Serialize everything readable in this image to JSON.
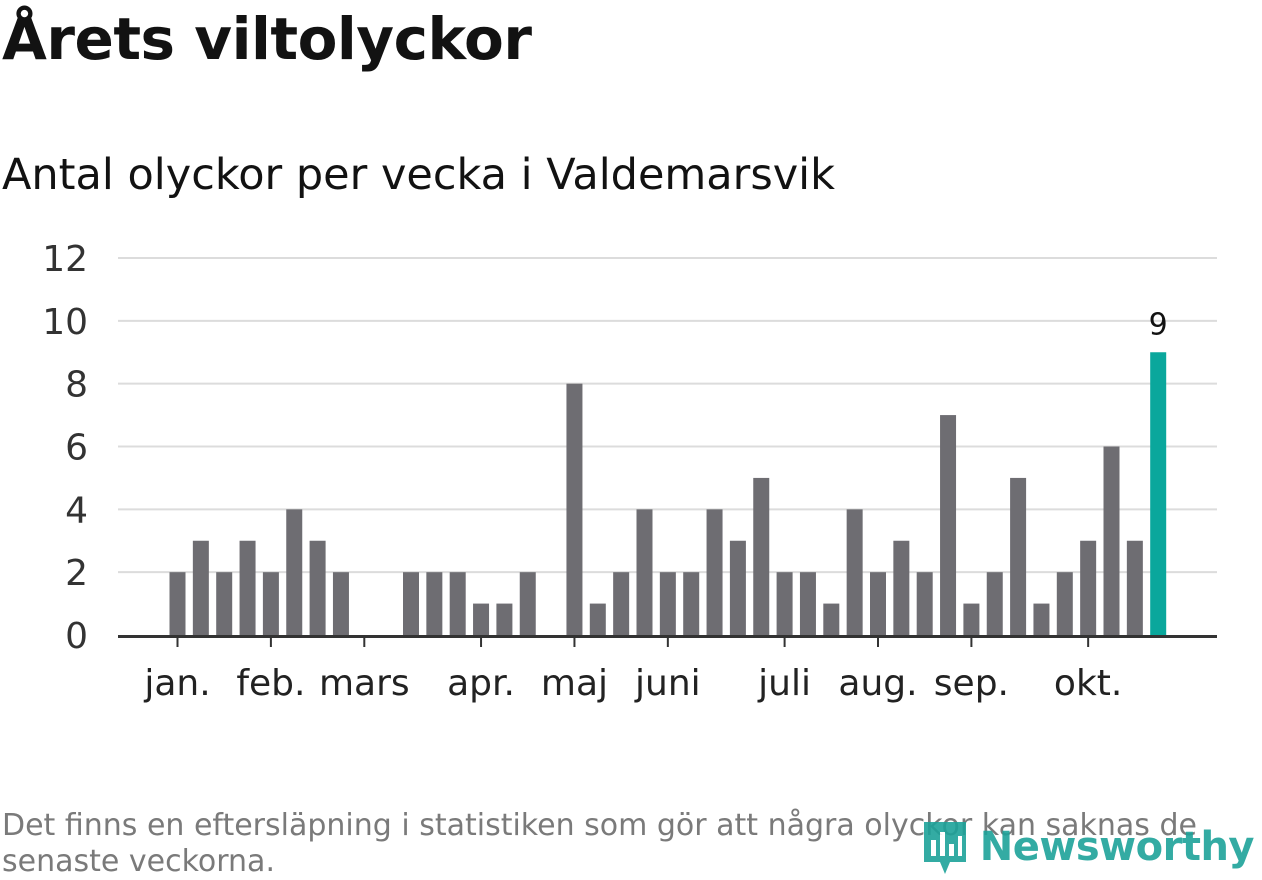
{
  "title": "Årets viltolyckor",
  "subtitle": "Antal olyckor per vecka i Valdemarsvik",
  "footnote": "Det finns en eftersläpning i statistiken som gör att några olyckor kan saknas de senaste veckorna.",
  "brand": "Newsworthy",
  "colors": {
    "bar": "#6e6d72",
    "highlight": "#0aa79c",
    "grid": "#dcdcdc",
    "axis": "#333333",
    "brand": "#1ea39a"
  },
  "chart_data": {
    "type": "bar",
    "title": "Antal olyckor per vecka i Valdemarsvik",
    "xlabel": "",
    "ylabel": "",
    "ylim": [
      0,
      12
    ],
    "yticks": [
      0,
      2,
      4,
      6,
      8,
      10,
      12
    ],
    "grid": true,
    "week_start": 2,
    "values": [
      2,
      3,
      2,
      3,
      2,
      4,
      3,
      2,
      0,
      0,
      2,
      2,
      2,
      1,
      1,
      2,
      0,
      8,
      1,
      2,
      4,
      2,
      2,
      4,
      3,
      5,
      2,
      2,
      1,
      4,
      2,
      3,
      2,
      7,
      1,
      2,
      5,
      1,
      2,
      3,
      6,
      3,
      9
    ],
    "highlight_index": 42,
    "highlight_label": "9",
    "month_labels": [
      {
        "label": "jan.",
        "week": 2
      },
      {
        "label": "feb.",
        "week": 6
      },
      {
        "label": "mars",
        "week": 10
      },
      {
        "label": "apr.",
        "week": 15
      },
      {
        "label": "maj",
        "week": 19
      },
      {
        "label": "juni",
        "week": 23
      },
      {
        "label": "juli",
        "week": 28
      },
      {
        "label": "aug.",
        "week": 32
      },
      {
        "label": "sep.",
        "week": 36
      },
      {
        "label": "okt.",
        "week": 41
      }
    ]
  }
}
